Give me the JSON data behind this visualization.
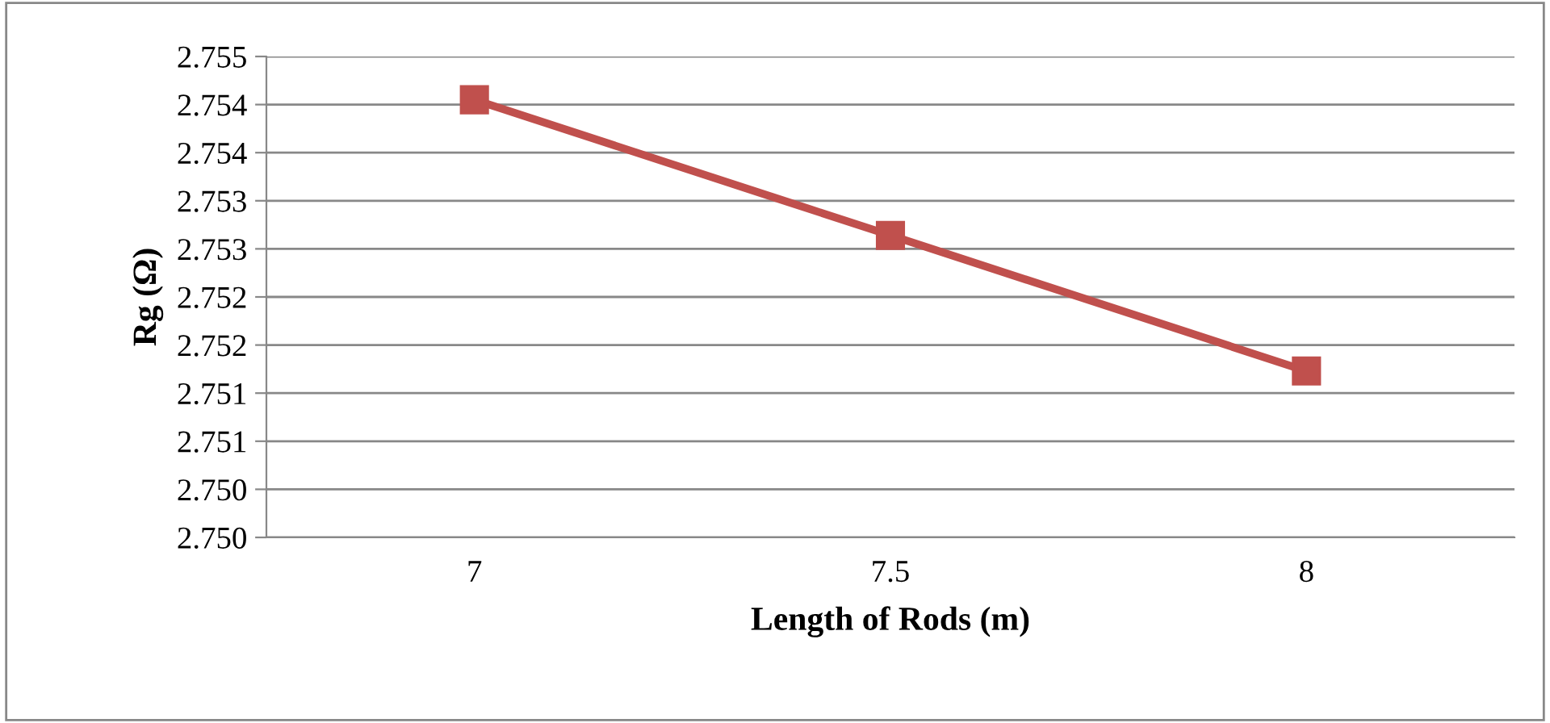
{
  "chart_data": {
    "type": "line",
    "xlabel": "Length of Rods (m)",
    "ylabel": "Rg (Ω)",
    "categories": [
      "7",
      "7.5",
      "8"
    ],
    "series": [
      {
        "color": "#c0504d",
        "values": [
          2.75455,
          2.75314,
          2.75173
        ]
      }
    ],
    "ylim": [
      2.75,
      2.755
    ],
    "yticks": [
      {
        "value": 2.75,
        "label": "2.750"
      },
      {
        "value": 2.7505,
        "label": "2.750"
      },
      {
        "value": 2.751,
        "label": "2.751"
      },
      {
        "value": 2.7515,
        "label": "2.751"
      },
      {
        "value": 2.752,
        "label": "2.752"
      },
      {
        "value": 2.7525,
        "label": "2.752"
      },
      {
        "value": 2.753,
        "label": "2.753"
      },
      {
        "value": 2.7535,
        "label": "2.753"
      },
      {
        "value": 2.754,
        "label": "2.754"
      },
      {
        "value": 2.7545,
        "label": "2.754"
      },
      {
        "value": 2.755,
        "label": "2.755"
      }
    ],
    "grid": "y",
    "marker": "square",
    "line_style": "solid",
    "legend": false
  }
}
